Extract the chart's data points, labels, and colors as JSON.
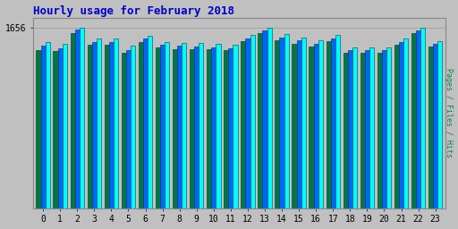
{
  "title": "Hourly usage for February 2018",
  "ylabel_right": "Pages / Files / Hits",
  "hours": [
    0,
    1,
    2,
    3,
    4,
    5,
    6,
    7,
    8,
    9,
    10,
    11,
    12,
    13,
    14,
    15,
    16,
    17,
    18,
    19,
    20,
    21,
    22,
    23
  ],
  "hits": [
    1530,
    1510,
    1660,
    1560,
    1560,
    1490,
    1580,
    1530,
    1520,
    1515,
    1510,
    1500,
    1590,
    1660,
    1600,
    1570,
    1545,
    1590,
    1480,
    1475,
    1480,
    1560,
    1655,
    1535
  ],
  "files": [
    1490,
    1470,
    1640,
    1530,
    1530,
    1455,
    1555,
    1500,
    1490,
    1488,
    1480,
    1470,
    1560,
    1630,
    1565,
    1540,
    1510,
    1560,
    1455,
    1450,
    1455,
    1530,
    1630,
    1510
  ],
  "pages": [
    1450,
    1440,
    1605,
    1500,
    1500,
    1425,
    1530,
    1475,
    1462,
    1462,
    1457,
    1448,
    1535,
    1605,
    1545,
    1512,
    1488,
    1535,
    1430,
    1425,
    1430,
    1502,
    1610,
    1488
  ],
  "hits_color": "#00FFFF",
  "files_color": "#0066FF",
  "pages_color": "#007744",
  "background_color": "#C0C0C0",
  "plot_bg_color": "#C0C0C0",
  "title_color": "#0000CC",
  "ylabel_right_color": "#008844",
  "ylim_min": 0,
  "ylim_max": 1750,
  "ytick_val": 1656,
  "bar_width": 0.27,
  "title_fontsize": 9,
  "tick_fontsize": 7
}
